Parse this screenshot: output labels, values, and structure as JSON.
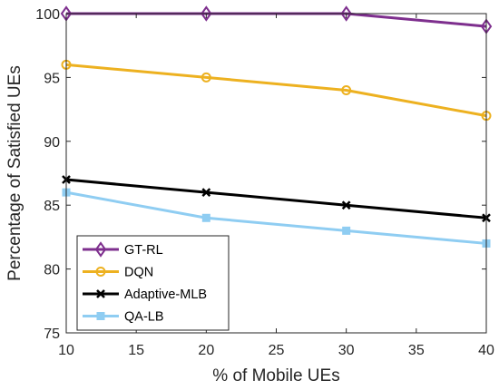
{
  "chart_data": {
    "type": "line",
    "xlabel": "% of Mobile UEs",
    "ylabel": "Percentage of Satisfied UEs",
    "xlim": [
      10,
      40
    ],
    "ylim": [
      75,
      100
    ],
    "xticks": [
      10,
      15,
      20,
      25,
      30,
      35,
      40
    ],
    "yticks": [
      75,
      80,
      85,
      90,
      95,
      100
    ],
    "grid": false,
    "legend_position": "bottom-left",
    "x": [
      10,
      20,
      30,
      40
    ],
    "series": [
      {
        "name": "GT-RL",
        "values": [
          100,
          100,
          100,
          99
        ],
        "color": "#7e2f8e",
        "marker": "diamond"
      },
      {
        "name": "DQN",
        "values": [
          96,
          95,
          94,
          92
        ],
        "color": "#edb120",
        "marker": "circle"
      },
      {
        "name": "Adaptive-MLB",
        "values": [
          87,
          86,
          85,
          84
        ],
        "color": "#000000",
        "marker": "x"
      },
      {
        "name": "QA-LB",
        "values": [
          86,
          84,
          83,
          82
        ],
        "color": "#8fcdf2",
        "marker": "square"
      }
    ]
  }
}
